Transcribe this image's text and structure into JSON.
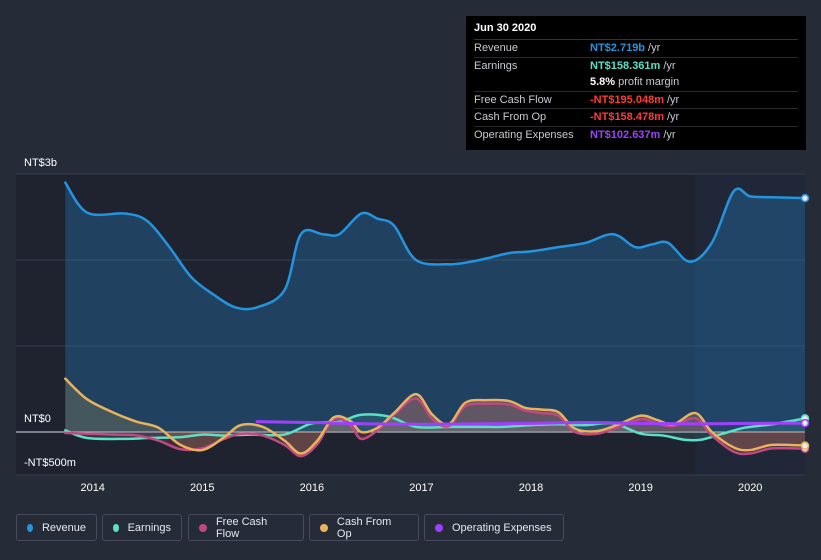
{
  "tooltip": {
    "date": "Jun 30 2020",
    "rows": [
      {
        "label": "Revenue",
        "value": "NT$2.719b",
        "unit": "/yr",
        "color": "#2394df"
      },
      {
        "label": "Earnings",
        "value": "NT$158.361m",
        "unit": "/yr",
        "color": "#5ae0c6"
      },
      {
        "label": "",
        "value": "5.8%",
        "unit": "profit margin",
        "color": "#ffffff"
      },
      {
        "label": "Free Cash Flow",
        "value": "-NT$195.048m",
        "unit": "/yr",
        "color": "#ff3b3b"
      },
      {
        "label": "Cash From Op",
        "value": "-NT$158.478m",
        "unit": "/yr",
        "color": "#ff3b3b"
      },
      {
        "label": "Operating Expenses",
        "value": "NT$102.637m",
        "unit": "/yr",
        "color": "#a040ff"
      }
    ]
  },
  "chart_data": {
    "type": "line",
    "y_axis_labels": {
      "top": "NT$3b",
      "zero": "NT$0",
      "bottom": "-NT$500m"
    },
    "ylim": [
      -500,
      3000
    ],
    "xlim": [
      2013.3,
      2020.5
    ],
    "x_tick_labels": [
      "2014",
      "2015",
      "2016",
      "2017",
      "2018",
      "2019",
      "2020"
    ],
    "x_ticks": [
      2014,
      2015,
      2016,
      2017,
      2018,
      2019,
      2020
    ],
    "shaded_region_start": 2019.5,
    "series": [
      {
        "name": "Revenue",
        "color": "#2394df",
        "points": [
          [
            2013.75,
            2900
          ],
          [
            2013.95,
            2550
          ],
          [
            2014.3,
            2540
          ],
          [
            2014.5,
            2450
          ],
          [
            2014.7,
            2150
          ],
          [
            2014.9,
            1800
          ],
          [
            2015.1,
            1600
          ],
          [
            2015.3,
            1450
          ],
          [
            2015.5,
            1450
          ],
          [
            2015.75,
            1650
          ],
          [
            2015.9,
            2300
          ],
          [
            2016.1,
            2300
          ],
          [
            2016.25,
            2300
          ],
          [
            2016.45,
            2540
          ],
          [
            2016.6,
            2480
          ],
          [
            2016.75,
            2400
          ],
          [
            2016.95,
            2000
          ],
          [
            2017.25,
            1950
          ],
          [
            2017.45,
            1980
          ],
          [
            2017.6,
            2020
          ],
          [
            2017.8,
            2080
          ],
          [
            2018.0,
            2100
          ],
          [
            2018.25,
            2150
          ],
          [
            2018.5,
            2200
          ],
          [
            2018.75,
            2300
          ],
          [
            2018.95,
            2150
          ],
          [
            2019.1,
            2180
          ],
          [
            2019.25,
            2200
          ],
          [
            2019.45,
            1980
          ],
          [
            2019.65,
            2200
          ],
          [
            2019.85,
            2800
          ],
          [
            2020.0,
            2740
          ],
          [
            2020.2,
            2730
          ],
          [
            2020.5,
            2719
          ]
        ]
      },
      {
        "name": "Earnings",
        "color": "#5ae0c6",
        "points": [
          [
            2013.75,
            20
          ],
          [
            2013.95,
            -70
          ],
          [
            2014.3,
            -80
          ],
          [
            2014.5,
            -70
          ],
          [
            2014.8,
            -60
          ],
          [
            2015.0,
            -30
          ],
          [
            2015.2,
            -40
          ],
          [
            2015.45,
            -30
          ],
          [
            2015.75,
            -30
          ],
          [
            2016.0,
            100
          ],
          [
            2016.25,
            120
          ],
          [
            2016.45,
            200
          ],
          [
            2016.7,
            180
          ],
          [
            2016.95,
            60
          ],
          [
            2017.25,
            60
          ],
          [
            2017.5,
            60
          ],
          [
            2017.75,
            60
          ],
          [
            2018.0,
            80
          ],
          [
            2018.25,
            90
          ],
          [
            2018.5,
            80
          ],
          [
            2018.75,
            100
          ],
          [
            2019.0,
            -20
          ],
          [
            2019.2,
            -40
          ],
          [
            2019.4,
            -90
          ],
          [
            2019.55,
            -90
          ],
          [
            2019.75,
            -20
          ],
          [
            2019.95,
            50
          ],
          [
            2020.2,
            90
          ],
          [
            2020.5,
            158
          ]
        ]
      },
      {
        "name": "Free Cash Flow",
        "color": "#c04a80",
        "points": [
          [
            2013.75,
            -10
          ],
          [
            2013.95,
            -20
          ],
          [
            2014.2,
            -30
          ],
          [
            2014.4,
            -40
          ],
          [
            2014.6,
            -100
          ],
          [
            2014.8,
            -200
          ],
          [
            2015.0,
            -190
          ],
          [
            2015.2,
            -80
          ],
          [
            2015.35,
            -20
          ],
          [
            2015.55,
            -40
          ],
          [
            2015.75,
            -150
          ],
          [
            2015.9,
            -280
          ],
          [
            2016.05,
            -140
          ],
          [
            2016.2,
            150
          ],
          [
            2016.35,
            80
          ],
          [
            2016.45,
            -80
          ],
          [
            2016.6,
            20
          ],
          [
            2016.75,
            200
          ],
          [
            2016.95,
            390
          ],
          [
            2017.1,
            150
          ],
          [
            2017.25,
            70
          ],
          [
            2017.4,
            300
          ],
          [
            2017.6,
            330
          ],
          [
            2017.8,
            320
          ],
          [
            2017.95,
            250
          ],
          [
            2018.1,
            220
          ],
          [
            2018.25,
            190
          ],
          [
            2018.4,
            0
          ],
          [
            2018.6,
            -20
          ],
          [
            2018.8,
            60
          ],
          [
            2019.0,
            150
          ],
          [
            2019.15,
            100
          ],
          [
            2019.3,
            70
          ],
          [
            2019.5,
            160
          ],
          [
            2019.65,
            -40
          ],
          [
            2019.85,
            -230
          ],
          [
            2020.0,
            -250
          ],
          [
            2020.2,
            -190
          ],
          [
            2020.5,
            -195
          ]
        ]
      },
      {
        "name": "Cash From Op",
        "color": "#e8b35b",
        "points": [
          [
            2013.75,
            620
          ],
          [
            2013.95,
            380
          ],
          [
            2014.2,
            220
          ],
          [
            2014.4,
            120
          ],
          [
            2014.6,
            50
          ],
          [
            2014.8,
            -150
          ],
          [
            2015.0,
            -210
          ],
          [
            2015.2,
            -60
          ],
          [
            2015.35,
            80
          ],
          [
            2015.55,
            60
          ],
          [
            2015.75,
            -100
          ],
          [
            2015.9,
            -250
          ],
          [
            2016.05,
            -100
          ],
          [
            2016.2,
            170
          ],
          [
            2016.35,
            130
          ],
          [
            2016.45,
            0
          ],
          [
            2016.6,
            50
          ],
          [
            2016.75,
            220
          ],
          [
            2016.95,
            440
          ],
          [
            2017.1,
            200
          ],
          [
            2017.25,
            90
          ],
          [
            2017.4,
            340
          ],
          [
            2017.6,
            370
          ],
          [
            2017.8,
            360
          ],
          [
            2017.95,
            280
          ],
          [
            2018.1,
            260
          ],
          [
            2018.25,
            230
          ],
          [
            2018.4,
            40
          ],
          [
            2018.6,
            10
          ],
          [
            2018.8,
            90
          ],
          [
            2019.0,
            190
          ],
          [
            2019.15,
            140
          ],
          [
            2019.3,
            90
          ],
          [
            2019.5,
            220
          ],
          [
            2019.65,
            0
          ],
          [
            2019.85,
            -180
          ],
          [
            2020.0,
            -210
          ],
          [
            2020.2,
            -150
          ],
          [
            2020.5,
            -158
          ]
        ]
      },
      {
        "name": "Operating Expenses",
        "color": "#a040ff",
        "points": [
          [
            2015.5,
            120
          ],
          [
            2016.0,
            110
          ],
          [
            2016.5,
            95
          ],
          [
            2017.0,
            90
          ],
          [
            2017.5,
            95
          ],
          [
            2018.0,
            100
          ],
          [
            2018.5,
            110
          ],
          [
            2019.0,
            100
          ],
          [
            2019.5,
            95
          ],
          [
            2020.0,
            100
          ],
          [
            2020.5,
            102.6
          ]
        ]
      }
    ]
  },
  "legend": [
    {
      "label": "Revenue",
      "color": "#2394df"
    },
    {
      "label": "Earnings",
      "color": "#5ae0c6"
    },
    {
      "label": "Free Cash Flow",
      "color": "#c04a80"
    },
    {
      "label": "Cash From Op",
      "color": "#e8b35b"
    },
    {
      "label": "Operating Expenses",
      "color": "#a040ff"
    }
  ]
}
